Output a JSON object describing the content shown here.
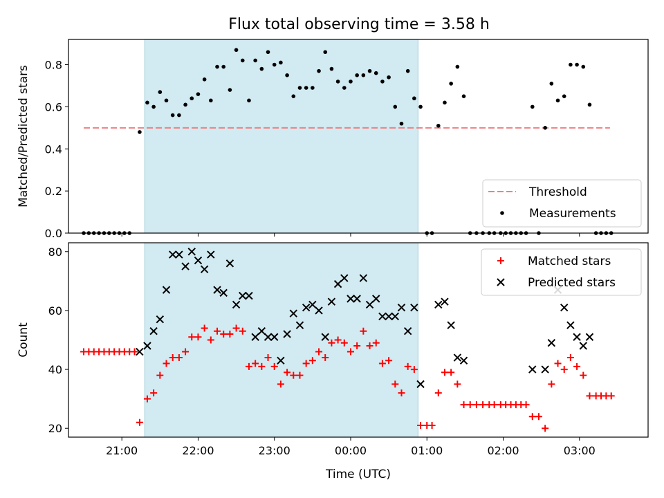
{
  "title": "Flux total observing time = 3.58 h",
  "chart_data": [
    {
      "type": "scatter",
      "ylabel": "Matched/Predicted stars",
      "xlabel": "",
      "x_unit": "time (UTC)",
      "xlim": [
        "20:18",
        "03:54"
      ],
      "ylim": [
        0,
        0.92
      ],
      "yticks": [
        0.0,
        0.2,
        0.4,
        0.6,
        0.8
      ],
      "ytick_labels": [
        "0.0",
        "0.2",
        "0.4",
        "0.6",
        "0.8"
      ],
      "xticks": [
        "21:00",
        "22:00",
        "23:00",
        "00:00",
        "01:00",
        "02:00",
        "03:00"
      ],
      "shaded_span": {
        "start": "21:18",
        "end": "00:53",
        "color": "#add8e6"
      },
      "threshold": {
        "name": "Threshold",
        "value": 0.5,
        "from": "20:30",
        "to": "03:24",
        "color": "#f08080",
        "style": "dashed"
      },
      "legend": {
        "placement": "lower right",
        "entries": [
          "Threshold",
          "Measurements"
        ]
      },
      "series": [
        {
          "name": "Measurements",
          "marker": "dot",
          "color": "#000000",
          "points": [
            [
              "20:30",
              0.0
            ],
            [
              "20:34",
              0.0
            ],
            [
              "20:38",
              0.0
            ],
            [
              "20:42",
              0.0
            ],
            [
              "20:46",
              0.0
            ],
            [
              "20:50",
              0.0
            ],
            [
              "20:54",
              0.0
            ],
            [
              "20:58",
              0.0
            ],
            [
              "21:02",
              0.0
            ],
            [
              "21:06",
              0.0
            ],
            [
              "21:14",
              0.48
            ],
            [
              "21:20",
              0.62
            ],
            [
              "21:25",
              0.6
            ],
            [
              "21:30",
              0.67
            ],
            [
              "21:35",
              0.63
            ],
            [
              "21:40",
              0.56
            ],
            [
              "21:45",
              0.56
            ],
            [
              "21:50",
              0.61
            ],
            [
              "21:55",
              0.64
            ],
            [
              "22:00",
              0.66
            ],
            [
              "22:05",
              0.73
            ],
            [
              "22:10",
              0.63
            ],
            [
              "22:15",
              0.79
            ],
            [
              "22:20",
              0.79
            ],
            [
              "22:25",
              0.68
            ],
            [
              "22:30",
              0.87
            ],
            [
              "22:35",
              0.82
            ],
            [
              "22:40",
              0.63
            ],
            [
              "22:45",
              0.82
            ],
            [
              "22:50",
              0.78
            ],
            [
              "22:55",
              0.86
            ],
            [
              "23:00",
              0.8
            ],
            [
              "23:05",
              0.81
            ],
            [
              "23:10",
              0.75
            ],
            [
              "23:15",
              0.65
            ],
            [
              "23:20",
              0.69
            ],
            [
              "23:25",
              0.69
            ],
            [
              "23:30",
              0.69
            ],
            [
              "23:35",
              0.77
            ],
            [
              "23:40",
              0.86
            ],
            [
              "23:45",
              0.78
            ],
            [
              "23:50",
              0.72
            ],
            [
              "23:55",
              0.69
            ],
            [
              "00:00",
              0.72
            ],
            [
              "00:05",
              0.75
            ],
            [
              "00:10",
              0.75
            ],
            [
              "00:15",
              0.77
            ],
            [
              "00:20",
              0.76
            ],
            [
              "00:25",
              0.72
            ],
            [
              "00:30",
              0.74
            ],
            [
              "00:35",
              0.6
            ],
            [
              "00:40",
              0.52
            ],
            [
              "00:45",
              0.77
            ],
            [
              "00:50",
              0.64
            ],
            [
              "00:55",
              0.6
            ],
            [
              "01:00",
              0.0
            ],
            [
              "01:04",
              0.0
            ],
            [
              "01:09",
              0.51
            ],
            [
              "01:14",
              0.62
            ],
            [
              "01:19",
              0.71
            ],
            [
              "01:24",
              0.79
            ],
            [
              "01:29",
              0.65
            ],
            [
              "01:34",
              0.0
            ],
            [
              "01:39",
              0.0
            ],
            [
              "01:44",
              0.0
            ],
            [
              "01:49",
              0.0
            ],
            [
              "01:53",
              0.0
            ],
            [
              "01:58",
              0.0
            ],
            [
              "02:02",
              0.0
            ],
            [
              "02:06",
              0.0
            ],
            [
              "02:10",
              0.0
            ],
            [
              "02:14",
              0.0
            ],
            [
              "02:18",
              0.0
            ],
            [
              "02:23",
              0.6
            ],
            [
              "02:28",
              0.0
            ],
            [
              "02:33",
              0.5
            ],
            [
              "02:38",
              0.71
            ],
            [
              "02:43",
              0.63
            ],
            [
              "02:48",
              0.65
            ],
            [
              "02:53",
              0.8
            ],
            [
              "02:58",
              0.8
            ],
            [
              "03:03",
              0.79
            ],
            [
              "03:08",
              0.61
            ],
            [
              "03:13",
              0.0
            ],
            [
              "03:17",
              0.0
            ],
            [
              "03:21",
              0.0
            ],
            [
              "03:25",
              0.0
            ]
          ]
        }
      ]
    },
    {
      "type": "scatter",
      "ylabel": "Count",
      "xlabel": "Time (UTC)",
      "x_unit": "time (UTC)",
      "xlim": [
        "20:18",
        "03:54"
      ],
      "ylim": [
        17,
        83
      ],
      "yticks": [
        20,
        40,
        60,
        80
      ],
      "ytick_labels": [
        "20",
        "40",
        "60",
        "80"
      ],
      "xticks": [
        "21:00",
        "22:00",
        "23:00",
        "00:00",
        "01:00",
        "02:00",
        "03:00"
      ],
      "shaded_span": {
        "start": "21:18",
        "end": "00:53",
        "color": "#add8e6"
      },
      "legend": {
        "placement": "upper right",
        "entries": [
          "Matched stars",
          "Predicted stars"
        ]
      },
      "series": [
        {
          "name": "Matched stars",
          "marker": "plus",
          "color": "#ff0000",
          "points": [
            [
              "20:30",
              46
            ],
            [
              "20:34",
              46
            ],
            [
              "20:38",
              46
            ],
            [
              "20:42",
              46
            ],
            [
              "20:46",
              46
            ],
            [
              "20:50",
              46
            ],
            [
              "20:54",
              46
            ],
            [
              "20:58",
              46
            ],
            [
              "21:02",
              46
            ],
            [
              "21:06",
              46
            ],
            [
              "21:10",
              46
            ],
            [
              "21:14",
              22
            ],
            [
              "21:20",
              30
            ],
            [
              "21:25",
              32
            ],
            [
              "21:30",
              38
            ],
            [
              "21:35",
              42
            ],
            [
              "21:40",
              44
            ],
            [
              "21:45",
              44
            ],
            [
              "21:50",
              46
            ],
            [
              "21:55",
              51
            ],
            [
              "22:00",
              51
            ],
            [
              "22:05",
              54
            ],
            [
              "22:10",
              50
            ],
            [
              "22:15",
              53
            ],
            [
              "22:20",
              52
            ],
            [
              "22:25",
              52
            ],
            [
              "22:30",
              54
            ],
            [
              "22:35",
              53
            ],
            [
              "22:40",
              41
            ],
            [
              "22:45",
              42
            ],
            [
              "22:50",
              41
            ],
            [
              "22:55",
              44
            ],
            [
              "23:00",
              41
            ],
            [
              "23:05",
              35
            ],
            [
              "23:10",
              39
            ],
            [
              "23:15",
              38
            ],
            [
              "23:20",
              38
            ],
            [
              "23:25",
              42
            ],
            [
              "23:30",
              43
            ],
            [
              "23:35",
              46
            ],
            [
              "23:40",
              44
            ],
            [
              "23:45",
              49
            ],
            [
              "23:50",
              50
            ],
            [
              "23:55",
              49
            ],
            [
              "00:00",
              46
            ],
            [
              "00:05",
              48
            ],
            [
              "00:10",
              53
            ],
            [
              "00:15",
              48
            ],
            [
              "00:20",
              49
            ],
            [
              "00:25",
              42
            ],
            [
              "00:30",
              43
            ],
            [
              "00:35",
              35
            ],
            [
              "00:40",
              32
            ],
            [
              "00:45",
              41
            ],
            [
              "00:50",
              40
            ],
            [
              "00:55",
              21
            ],
            [
              "01:00",
              21
            ],
            [
              "01:04",
              21
            ],
            [
              "01:09",
              32
            ],
            [
              "01:14",
              39
            ],
            [
              "01:19",
              39
            ],
            [
              "01:24",
              35
            ],
            [
              "01:29",
              28
            ],
            [
              "01:34",
              28
            ],
            [
              "01:39",
              28
            ],
            [
              "01:44",
              28
            ],
            [
              "01:49",
              28
            ],
            [
              "01:53",
              28
            ],
            [
              "01:58",
              28
            ],
            [
              "02:02",
              28
            ],
            [
              "02:06",
              28
            ],
            [
              "02:10",
              28
            ],
            [
              "02:14",
              28
            ],
            [
              "02:18",
              28
            ],
            [
              "02:23",
              24
            ],
            [
              "02:28",
              24
            ],
            [
              "02:33",
              20
            ],
            [
              "02:38",
              35
            ],
            [
              "02:43",
              42
            ],
            [
              "02:48",
              40
            ],
            [
              "02:53",
              44
            ],
            [
              "02:58",
              41
            ],
            [
              "03:03",
              38
            ],
            [
              "03:08",
              31
            ],
            [
              "03:13",
              31
            ],
            [
              "03:17",
              31
            ],
            [
              "03:21",
              31
            ],
            [
              "03:25",
              31
            ]
          ]
        },
        {
          "name": "Predicted stars",
          "marker": "x",
          "color": "#000000",
          "points": [
            [
              "21:14",
              46
            ],
            [
              "21:20",
              48
            ],
            [
              "21:25",
              53
            ],
            [
              "21:30",
              57
            ],
            [
              "21:35",
              67
            ],
            [
              "21:40",
              79
            ],
            [
              "21:45",
              79
            ],
            [
              "21:50",
              75
            ],
            [
              "21:55",
              80
            ],
            [
              "22:00",
              77
            ],
            [
              "22:05",
              74
            ],
            [
              "22:10",
              79
            ],
            [
              "22:15",
              67
            ],
            [
              "22:20",
              66
            ],
            [
              "22:25",
              76
            ],
            [
              "22:30",
              62
            ],
            [
              "22:35",
              65
            ],
            [
              "22:40",
              65
            ],
            [
              "22:45",
              51
            ],
            [
              "22:50",
              53
            ],
            [
              "22:55",
              51
            ],
            [
              "23:00",
              51
            ],
            [
              "23:05",
              43
            ],
            [
              "23:10",
              52
            ],
            [
              "23:15",
              59
            ],
            [
              "23:20",
              55
            ],
            [
              "23:25",
              61
            ],
            [
              "23:30",
              62
            ],
            [
              "23:35",
              60
            ],
            [
              "23:40",
              51
            ],
            [
              "23:45",
              63
            ],
            [
              "23:50",
              69
            ],
            [
              "23:55",
              71
            ],
            [
              "00:00",
              64
            ],
            [
              "00:05",
              64
            ],
            [
              "00:10",
              71
            ],
            [
              "00:15",
              62
            ],
            [
              "00:20",
              64
            ],
            [
              "00:25",
              58
            ],
            [
              "00:30",
              58
            ],
            [
              "00:35",
              58
            ],
            [
              "00:40",
              61
            ],
            [
              "00:45",
              53
            ],
            [
              "00:50",
              61
            ],
            [
              "00:55",
              35
            ],
            [
              "01:09",
              62
            ],
            [
              "01:14",
              63
            ],
            [
              "01:19",
              55
            ],
            [
              "01:24",
              44
            ],
            [
              "01:29",
              43
            ],
            [
              "02:23",
              40
            ],
            [
              "02:33",
              40
            ],
            [
              "02:38",
              49
            ],
            [
              "02:43",
              67
            ],
            [
              "02:48",
              61
            ],
            [
              "02:53",
              55
            ],
            [
              "02:58",
              51
            ],
            [
              "03:03",
              48
            ],
            [
              "03:08",
              51
            ]
          ]
        }
      ]
    }
  ]
}
